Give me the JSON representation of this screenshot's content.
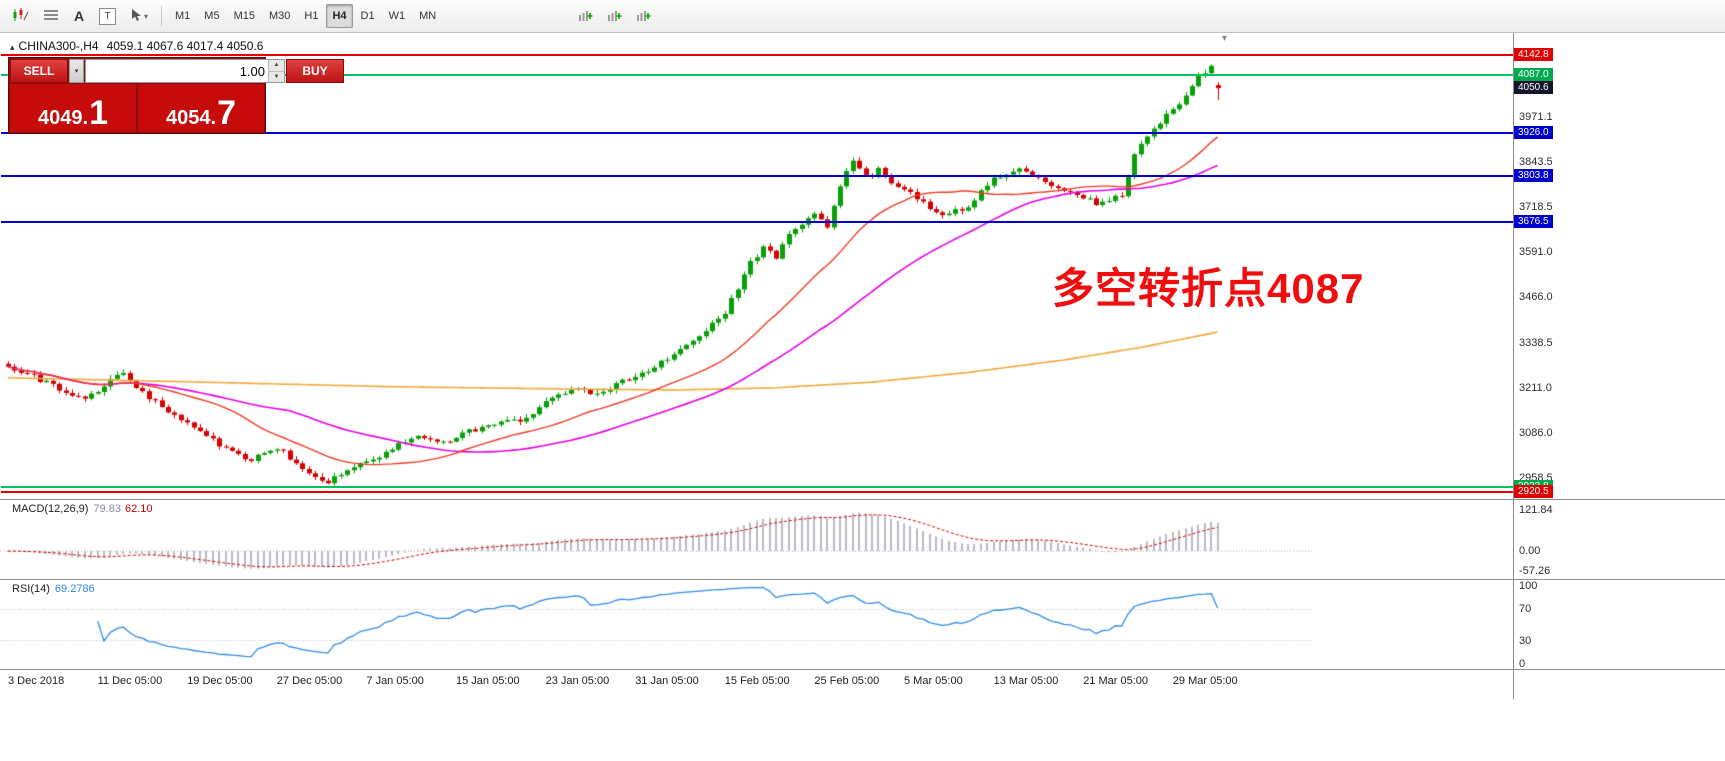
{
  "toolbar": {
    "tools": [
      {
        "name": "indicators",
        "icon": "candles-pen-icon",
        "svg": "candles"
      },
      {
        "name": "indicator-windows",
        "icon": "list-icon",
        "svg": "list"
      },
      {
        "name": "text-tool",
        "label": "A"
      },
      {
        "name": "textbox-tool",
        "label": "T",
        "boxed": true
      },
      {
        "name": "cursor-tool",
        "icon": "cursor-icon",
        "svg": "cursor",
        "dropdown": true
      }
    ],
    "timeframes": [
      {
        "label": "M1"
      },
      {
        "label": "M5"
      },
      {
        "label": "M15"
      },
      {
        "label": "M30"
      },
      {
        "label": "H1"
      },
      {
        "label": "H4",
        "active": true
      },
      {
        "label": "D1"
      },
      {
        "label": "W1"
      },
      {
        "label": "MN"
      }
    ],
    "extra_icons": [
      {
        "name": "mini-indicator-icon-1"
      },
      {
        "name": "mini-indicator-icon-2"
      },
      {
        "name": "mini-indicator-icon-3"
      }
    ]
  },
  "chart": {
    "symbol_timeframe": "CHINA300-,H4",
    "ohlc": "4059.1 4067.6 4017.4 4050.6",
    "collapse_glyph": "▴"
  },
  "trade_panel": {
    "sell_label": "SELL",
    "buy_label": "BUY",
    "volume": "1.00",
    "sell_price_main": "4049.",
    "sell_price_big": "1",
    "buy_price_main": "4054.",
    "buy_price_big": "7"
  },
  "annotation": {
    "text": "多空转折点4087",
    "color": "#f00d0d"
  },
  "price_axis": {
    "labels": [
      {
        "v": 3971.1,
        "t": "3971.1"
      },
      {
        "v": 3843.5,
        "t": "3843.5"
      },
      {
        "v": 3718.5,
        "t": "3718.5"
      },
      {
        "v": 3591.0,
        "t": "3591.0"
      },
      {
        "v": 3466.0,
        "t": "3466.0"
      },
      {
        "v": 3338.5,
        "t": "3338.5"
      },
      {
        "v": 3211.0,
        "t": "3211.0"
      },
      {
        "v": 3086.0,
        "t": "3086.0"
      },
      {
        "v": 2958.5,
        "t": "2958.5"
      }
    ]
  },
  "levels": [
    {
      "value": 4142.8,
      "label": "4142.8",
      "bg": "#e00000",
      "line": "#e80000"
    },
    {
      "value": 4087.0,
      "label": "4087.0",
      "bg": "#00a94f",
      "line": "#00c25e"
    },
    {
      "value": 4050.6,
      "label": "4050.6",
      "bg": "#15152c"
    },
    {
      "value": 3926.0,
      "label": "3926.0",
      "bg": "#0000cc",
      "line": "#0000d2"
    },
    {
      "value": 3803.8,
      "label": "3803.8",
      "bg": "#0000cc",
      "line": "#0000d2"
    },
    {
      "value": 3676.5,
      "label": "3676.5",
      "bg": "#0000cc",
      "line": "#0000d2"
    },
    {
      "value": 2933.8,
      "label": "2933.8",
      "bg": "#00a94f",
      "line": "#00c25e"
    },
    {
      "value": 2920.5,
      "label": "2920.5",
      "bg": "#e00000",
      "line": "#e80000"
    }
  ],
  "macd": {
    "label": "MACD(12,26,9)",
    "value_main": "79.83",
    "value_signal": "62.10",
    "axis": [
      {
        "v": 121.84,
        "t": "121.84"
      },
      {
        "v": 0,
        "t": "0.00"
      },
      {
        "v": -57.26,
        "t": "-57.26"
      }
    ],
    "range": [
      -85,
      150
    ],
    "params": {
      "fast": 12,
      "slow": 26,
      "signal": 9
    },
    "hist_color": "#b9b9c6",
    "signal_color": "#d40000"
  },
  "rsi": {
    "label": "RSI(14)",
    "value": "69.2786",
    "period": 14,
    "axis": [
      {
        "v": 100,
        "t": "100"
      },
      {
        "v": 70,
        "t": "70"
      },
      {
        "v": 30,
        "t": "30"
      },
      {
        "v": 0,
        "t": "0"
      }
    ],
    "levels": [
      70,
      30
    ],
    "line_color": "#2f8be8"
  },
  "time_axis": {
    "labels": [
      {
        "i": 0,
        "t": "3 Dec 2018"
      },
      {
        "i": 14,
        "t": "11 Dec 05:00"
      },
      {
        "i": 28,
        "t": "19 Dec 05:00"
      },
      {
        "i": 42,
        "t": "27 Dec 05:00"
      },
      {
        "i": 56,
        "t": "7 Jan 05:00"
      },
      {
        "i": 70,
        "t": "15 Jan 05:00"
      },
      {
        "i": 84,
        "t": "23 Jan 05:00"
      },
      {
        "i": 98,
        "t": "31 Jan 05:00"
      },
      {
        "i": 112,
        "t": "15 Feb 05:00"
      },
      {
        "i": 126,
        "t": "25 Feb 05:00"
      },
      {
        "i": 140,
        "t": "5 Mar 05:00"
      },
      {
        "i": 154,
        "t": "13 Mar 05:00"
      },
      {
        "i": 168,
        "t": "21 Mar 05:00"
      },
      {
        "i": 182,
        "t": "29 Mar 05:00"
      }
    ]
  },
  "chart_data": {
    "type": "candlestick",
    "symbol": "CHINA300-",
    "timeframe": "H4",
    "title": "CHINA300-,H4 4059.1 4067.6 4017.4 4050.6",
    "candle_count": 190,
    "price_range": [
      2898,
      4205
    ],
    "noise_seed": 7,
    "noise_amp": 14,
    "close_anchors": [
      [
        0,
        3270
      ],
      [
        4,
        3242
      ],
      [
        8,
        3208
      ],
      [
        12,
        3176
      ],
      [
        16,
        3238
      ],
      [
        18,
        3252
      ],
      [
        22,
        3185
      ],
      [
        26,
        3130
      ],
      [
        30,
        3092
      ],
      [
        34,
        3040
      ],
      [
        38,
        3010
      ],
      [
        42,
        3046
      ],
      [
        46,
        2986
      ],
      [
        50,
        2948
      ],
      [
        52,
        2972
      ],
      [
        56,
        3004
      ],
      [
        60,
        3042
      ],
      [
        64,
        3076
      ],
      [
        68,
        3058
      ],
      [
        72,
        3092
      ],
      [
        76,
        3112
      ],
      [
        80,
        3120
      ],
      [
        84,
        3168
      ],
      [
        88,
        3208
      ],
      [
        92,
        3198
      ],
      [
        96,
        3228
      ],
      [
        98,
        3242
      ],
      [
        102,
        3282
      ],
      [
        106,
        3330
      ],
      [
        110,
        3392
      ],
      [
        112,
        3424
      ],
      [
        116,
        3560
      ],
      [
        118,
        3602
      ],
      [
        120,
        3578
      ],
      [
        122,
        3642
      ],
      [
        126,
        3700
      ],
      [
        128,
        3662
      ],
      [
        130,
        3782
      ],
      [
        132,
        3848
      ],
      [
        134,
        3800
      ],
      [
        136,
        3822
      ],
      [
        138,
        3788
      ],
      [
        140,
        3766
      ],
      [
        142,
        3742
      ],
      [
        146,
        3692
      ],
      [
        150,
        3722
      ],
      [
        154,
        3798
      ],
      [
        158,
        3822
      ],
      [
        162,
        3790
      ],
      [
        166,
        3758
      ],
      [
        170,
        3728
      ],
      [
        174,
        3752
      ],
      [
        176,
        3868
      ],
      [
        178,
        3920
      ],
      [
        180,
        3958
      ],
      [
        182,
        3990
      ],
      [
        184,
        4030
      ],
      [
        186,
        4082
      ],
      [
        188,
        4112
      ],
      [
        189,
        4050.6
      ]
    ],
    "last_candle": {
      "o": 4059.1,
      "h": 4067.6,
      "l": 4017.4,
      "c": 4050.6
    },
    "ma_fast": {
      "period": 21,
      "color": "#ef3b24"
    },
    "ma_mid": {
      "period": 45,
      "color": "#e600e6"
    },
    "ma_slow_anchors": [
      [
        0,
        3240
      ],
      [
        30,
        3228
      ],
      [
        60,
        3215
      ],
      [
        90,
        3208
      ],
      [
        105,
        3206
      ],
      [
        120,
        3212
      ],
      [
        135,
        3228
      ],
      [
        150,
        3255
      ],
      [
        165,
        3290
      ],
      [
        177,
        3325
      ],
      [
        189,
        3368
      ]
    ],
    "ma_slow_color": "#f2a93b",
    "colors": {
      "bull": "#089f08",
      "bear": "#d40000"
    }
  }
}
